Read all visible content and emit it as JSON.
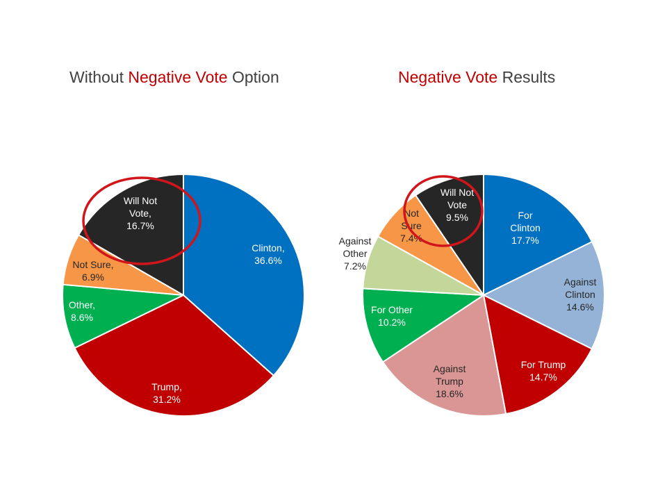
{
  "colors": {
    "title_text": "#404040",
    "highlight": "#c00000",
    "annotation_ring": "#d0161b"
  },
  "chart_data": [
    {
      "type": "pie",
      "title": {
        "before": "Without ",
        "highlight": "Negative Vote",
        "after": " Option"
      },
      "start_angle_deg": 0,
      "direction": "clockwise",
      "slices": [
        {
          "name": "Clinton",
          "value": 36.6,
          "label_lines": [
            "Clinton,",
            "36.6%"
          ],
          "color": "#0070c0",
          "label_color": "#ffffff"
        },
        {
          "name": "Trump",
          "value": 31.2,
          "label_lines": [
            "Trump,",
            "31.2%"
          ],
          "color": "#c00000",
          "label_color": "#ffffff"
        },
        {
          "name": "Other",
          "value": 8.6,
          "label_lines": [
            "Other,",
            "8.6%"
          ],
          "color": "#00b050",
          "label_color": "#ffffff"
        },
        {
          "name": "Not Sure",
          "value": 6.9,
          "label_lines": [
            "Not Sure,",
            "6.9%"
          ],
          "color": "#f79646",
          "label_color": "#262626"
        },
        {
          "name": "Will Not Vote",
          "value": 16.7,
          "label_lines": [
            "Will Not",
            "Vote,",
            "16.7%"
          ],
          "color": "#262626",
          "label_color": "#ffffff"
        }
      ],
      "highlighted_slice": "Will Not Vote"
    },
    {
      "type": "pie",
      "title": {
        "before": "",
        "highlight": "Negative Vote",
        "after": " Results"
      },
      "start_angle_deg": 0,
      "direction": "clockwise",
      "slices": [
        {
          "name": "For Clinton",
          "value": 17.7,
          "label_lines": [
            "For",
            "Clinton",
            "17.7%"
          ],
          "color": "#0070c0",
          "label_color": "#ffffff"
        },
        {
          "name": "Against Clinton",
          "value": 14.6,
          "label_lines": [
            "Against",
            "Clinton",
            "14.6%"
          ],
          "color": "#95b3d7",
          "label_color": "#262626"
        },
        {
          "name": "For Trump",
          "value": 14.7,
          "label_lines": [
            "For Trump",
            "14.7%"
          ],
          "color": "#c00000",
          "label_color": "#ffffff"
        },
        {
          "name": "Against Trump",
          "value": 18.6,
          "label_lines": [
            "Against",
            "Trump",
            "18.6%"
          ],
          "color": "#d99694",
          "label_color": "#262626"
        },
        {
          "name": "For Other",
          "value": 10.2,
          "label_lines": [
            "For Other",
            "10.2%"
          ],
          "color": "#00b050",
          "label_color": "#ffffff"
        },
        {
          "name": "Against Other",
          "value": 7.2,
          "label_lines": [
            "Against",
            "Other",
            "7.2%"
          ],
          "color": "#c4d79b",
          "label_color": "#262626"
        },
        {
          "name": "Not Sure",
          "value": 7.4,
          "label_lines": [
            "Not",
            "Sure",
            "7.4%"
          ],
          "color": "#f79646",
          "label_color": "#262626"
        },
        {
          "name": "Will Not Vote",
          "value": 9.5,
          "label_lines": [
            "Will Not",
            "Vote",
            "9.5%"
          ],
          "color": "#262626",
          "label_color": "#ffffff"
        }
      ],
      "highlighted_slice": "Will Not Vote"
    }
  ]
}
